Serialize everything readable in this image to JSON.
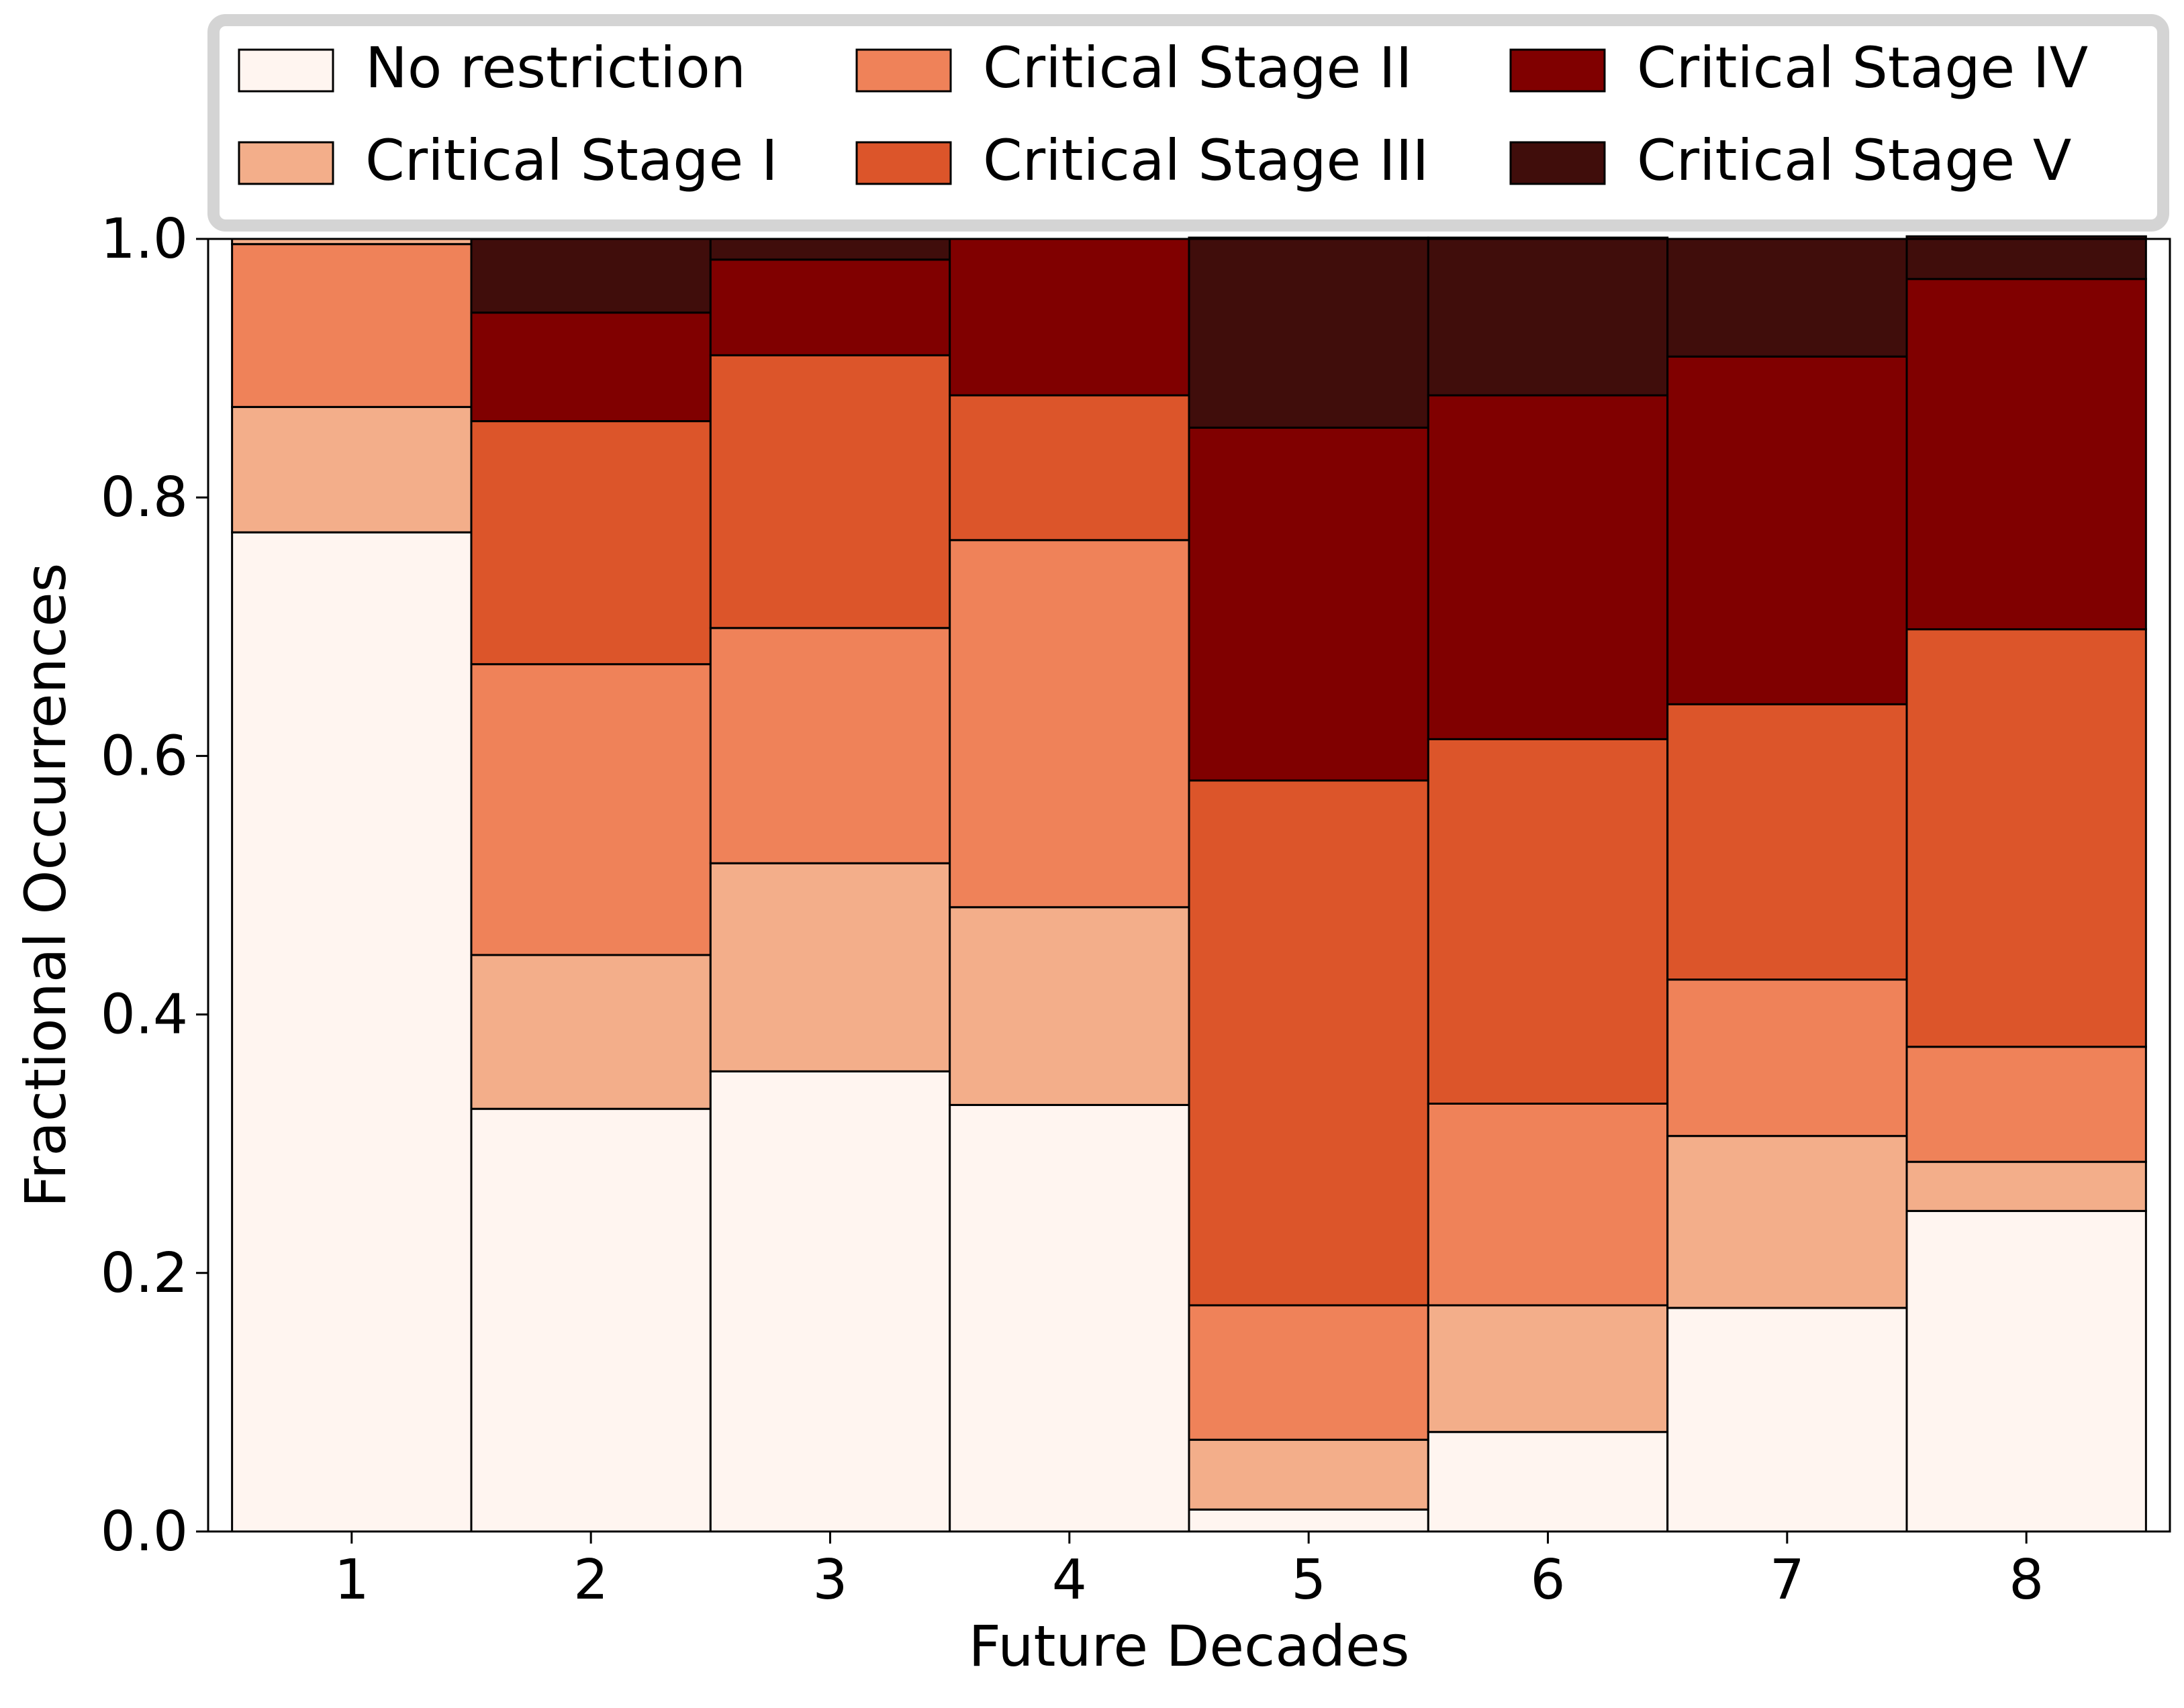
{
  "chart_data": {
    "type": "bar",
    "stacked": true,
    "title": "",
    "xlabel": "Future Decades",
    "ylabel": "Fractional Occurrences",
    "ylim": [
      0,
      1.0
    ],
    "xlim": [
      0.4,
      8.6
    ],
    "yticks": [
      "0.0",
      "0.2",
      "0.4",
      "0.6",
      "0.8",
      "1.0"
    ],
    "ytick_values": [
      0,
      0.2,
      0.4,
      0.6,
      0.8,
      1.0
    ],
    "categories": [
      "1",
      "2",
      "3",
      "4",
      "5",
      "6",
      "7",
      "8"
    ],
    "x": [
      1,
      2,
      3,
      4,
      5,
      6,
      7,
      8
    ],
    "bar_width": 1.0,
    "grid": false,
    "legend_position": "top",
    "series": [
      {
        "name": "No restriction",
        "color": "#fff5f0",
        "values": [
          0.773,
          0.327,
          0.356,
          0.33,
          0.017,
          0.077,
          0.173,
          0.248
        ]
      },
      {
        "name": "Critical Stage I",
        "color": "#f3ae8a",
        "values": [
          0.097,
          0.119,
          0.161,
          0.153,
          0.054,
          0.098,
          0.133,
          0.038
        ]
      },
      {
        "name": "Critical Stage II",
        "color": "#ef8259",
        "values": [
          0.126,
          0.225,
          0.182,
          0.284,
          0.104,
          0.156,
          0.121,
          0.089
        ]
      },
      {
        "name": "Critical Stage III",
        "color": "#dc552a",
        "values": [
          0.0,
          0.188,
          0.211,
          0.112,
          0.406,
          0.282,
          0.213,
          0.323
        ]
      },
      {
        "name": "Critical Stage IV",
        "color": "#800000",
        "values": [
          0.0,
          0.084,
          0.074,
          0.121,
          0.273,
          0.266,
          0.269,
          0.271
        ]
      },
      {
        "name": "Critical Stage V",
        "color": "#400d0b",
        "values": [
          0.0,
          0.057,
          0.016,
          0.0,
          0.147,
          0.122,
          0.091,
          0.033
        ]
      }
    ],
    "top_segment_note_value": 0.004
  }
}
